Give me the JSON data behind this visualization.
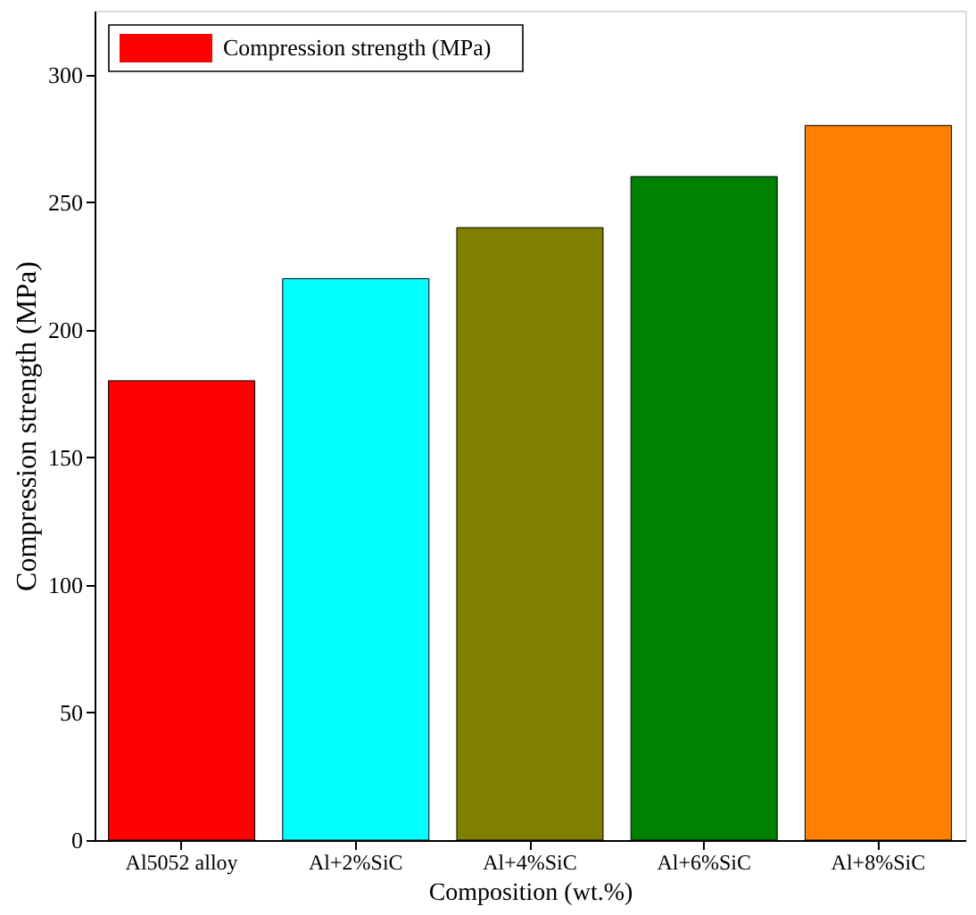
{
  "chart_data": {
    "type": "bar",
    "xlabel": "Composition (wt.%)",
    "ylabel": "Compression strength  (MPa)",
    "categories": [
      "Al5052 alloy",
      "Al+2%SiC",
      "Al+4%SiC",
      "Al+6%SiC",
      "Al+8%SiC"
    ],
    "series": [
      {
        "name": "Compression strength  (MPa)",
        "colors": [
          "#ff0000",
          "#00ffff",
          "#808000",
          "#008000",
          "#ff8000"
        ],
        "values": [
          180,
          220,
          240,
          260,
          280
        ]
      }
    ],
    "ylim": [
      0,
      325
    ],
    "yticks": [
      0,
      50,
      100,
      150,
      200,
      250,
      300
    ],
    "grid": false,
    "legend": "top left"
  }
}
